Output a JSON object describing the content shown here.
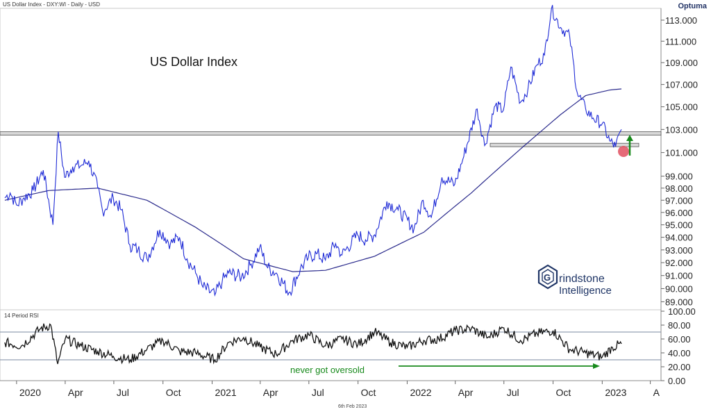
{
  "header": {
    "title": "US Dollar Index - DXY:WI - Daily - USD",
    "brand": "Optuma",
    "footer_date": "6th Feb 2023"
  },
  "price_panel": {
    "chart_title": "US Dollar Index",
    "logo_line1": "rindstone",
    "logo_line2": "Intelligence",
    "logo_letter": "G"
  },
  "rsi_panel": {
    "label": "14 Period RSI",
    "annotation": "never got oversold"
  },
  "colors": {
    "price_line": "#1f2bd6",
    "moving_average": "#2a2a8c",
    "rsi_line": "#111111",
    "annotation": "#188a1c",
    "marker": "#e05060",
    "band": "#d8d8d8"
  },
  "chart_data": [
    {
      "type": "line",
      "title": "US Dollar Index",
      "y_ticks": [
        "113.000",
        "111.000",
        "109.000",
        "107.000",
        "105.000",
        "103.000",
        "101.000",
        "99.000",
        "98.000",
        "97.000",
        "96.000",
        "95.000",
        "94.000",
        "93.000",
        "92.000",
        "91.000",
        "90.000",
        "89.000"
      ],
      "y_scale": "log",
      "ylim": [
        88.5,
        114.0
      ],
      "x_ticks": [
        "2020",
        "Apr",
        "Jul",
        "Oct",
        "2021",
        "Apr",
        "Jul",
        "Oct",
        "2022",
        "Apr",
        "Jul",
        "Oct",
        "2023",
        "A"
      ],
      "series": [
        {
          "name": "",
          "x": [
            "2019-12-10",
            "2019-12-20",
            "2020-01-01",
            "2020-01-15",
            "2020-02-01",
            "2020-02-20",
            "2020-03-09",
            "2020-03-19",
            "2020-03-31",
            "2020-04-15",
            "2020-05-01",
            "2020-05-15",
            "2020-06-01",
            "2020-06-10",
            "2020-06-30",
            "2020-07-15",
            "2020-07-31",
            "2020-08-15",
            "2020-09-01",
            "2020-09-25",
            "2020-10-15",
            "2020-11-01",
            "2020-11-15",
            "2020-12-01",
            "2020-12-15",
            "2021-01-06",
            "2021-01-20",
            "2021-02-01",
            "2021-02-25",
            "2021-03-15",
            "2021-03-31",
            "2021-04-15",
            "2021-05-01",
            "2021-05-25",
            "2021-06-15",
            "2021-06-30",
            "2021-07-15",
            "2021-08-01",
            "2021-08-20",
            "2021-09-01",
            "2021-09-30",
            "2021-10-15",
            "2021-11-01",
            "2021-11-24",
            "2021-12-15",
            "2022-01-14",
            "2022-01-31",
            "2022-02-15",
            "2022-03-07",
            "2022-03-31",
            "2022-04-15",
            "2022-05-12",
            "2022-05-26",
            "2022-06-15",
            "2022-06-30",
            "2022-07-14",
            "2022-08-01",
            "2022-08-15",
            "2022-09-01",
            "2022-09-15",
            "2022-09-28",
            "2022-10-15",
            "2022-11-01",
            "2022-11-15",
            "2022-12-01",
            "2022-12-15",
            "2023-01-01",
            "2023-01-15",
            "2023-01-26",
            "2023-02-06"
          ],
          "y": [
            97.2,
            97.6,
            96.6,
            97.2,
            97.8,
            99.5,
            95.0,
            102.8,
            98.9,
            99.8,
            99.9,
            100.3,
            98.0,
            96.1,
            97.2,
            96.2,
            93.4,
            93.0,
            92.3,
            94.6,
            93.5,
            94.0,
            92.3,
            91.2,
            90.1,
            89.5,
            90.6,
            91.2,
            90.9,
            91.9,
            93.2,
            91.6,
            91.2,
            89.7,
            91.5,
            92.4,
            92.7,
            92.2,
            93.5,
            92.6,
            94.2,
            93.8,
            94.2,
            96.9,
            96.2,
            94.7,
            97.0,
            95.6,
            98.9,
            98.3,
            100.4,
            104.8,
            101.6,
            105.1,
            104.7,
            108.6,
            105.4,
            106.6,
            108.8,
            109.7,
            114.1,
            112.3,
            111.5,
            106.3,
            104.8,
            104.0,
            103.5,
            102.0,
            101.5,
            103.0
          ]
        },
        {
          "name": "",
          "x": [
            "2019-12-10",
            "2020-03-01",
            "2020-06-01",
            "2020-09-01",
            "2020-12-01",
            "2021-03-01",
            "2021-06-01",
            "2021-08-01",
            "2021-11-01",
            "2022-02-01",
            "2022-05-01",
            "2022-08-01",
            "2022-10-15",
            "2022-12-01",
            "2023-01-15",
            "2023-02-06"
          ],
          "y": [
            97.0,
            97.8,
            98.0,
            97.0,
            94.8,
            92.3,
            91.3,
            91.4,
            92.5,
            94.4,
            97.6,
            101.3,
            104.3,
            106.0,
            106.5,
            106.6
          ]
        }
      ],
      "horizontal_bands": [
        [
          102.5,
          102.8
        ],
        [
          101.5,
          101.8
        ]
      ]
    },
    {
      "type": "line",
      "title": "14 Period RSI",
      "y_ticks": [
        "100.00",
        "80.00",
        "60.00",
        "40.00",
        "20.00",
        "0.00"
      ],
      "ylim": [
        0,
        100
      ],
      "reference_lines": [
        70,
        30
      ],
      "series": [
        {
          "name": "",
          "x": [
            "2019-12-10",
            "2020-01-10",
            "2020-02-15",
            "2020-03-05",
            "2020-03-18",
            "2020-04-01",
            "2020-05-01",
            "2020-06-01",
            "2020-06-30",
            "2020-08-01",
            "2020-09-01",
            "2020-10-01",
            "2020-11-01",
            "2020-12-01",
            "2021-01-06",
            "2021-02-01",
            "2021-03-01",
            "2021-04-01",
            "2021-05-01",
            "2021-06-01",
            "2021-07-01",
            "2021-08-01",
            "2021-09-01",
            "2021-10-01",
            "2021-11-01",
            "2021-12-01",
            "2022-01-01",
            "2022-02-01",
            "2022-03-01",
            "2022-04-01",
            "2022-05-01",
            "2022-06-01",
            "2022-07-01",
            "2022-08-01",
            "2022-09-01",
            "2022-10-01",
            "2022-11-01",
            "2022-12-01",
            "2023-01-01",
            "2023-01-20",
            "2023-02-06"
          ],
          "y": [
            55,
            50,
            75,
            80,
            24,
            60,
            50,
            42,
            35,
            30,
            45,
            58,
            42,
            40,
            30,
            55,
            62,
            48,
            38,
            58,
            66,
            50,
            60,
            52,
            70,
            55,
            48,
            58,
            60,
            72,
            75,
            62,
            76,
            58,
            68,
            72,
            45,
            40,
            34,
            48,
            53
          ]
        }
      ]
    }
  ]
}
